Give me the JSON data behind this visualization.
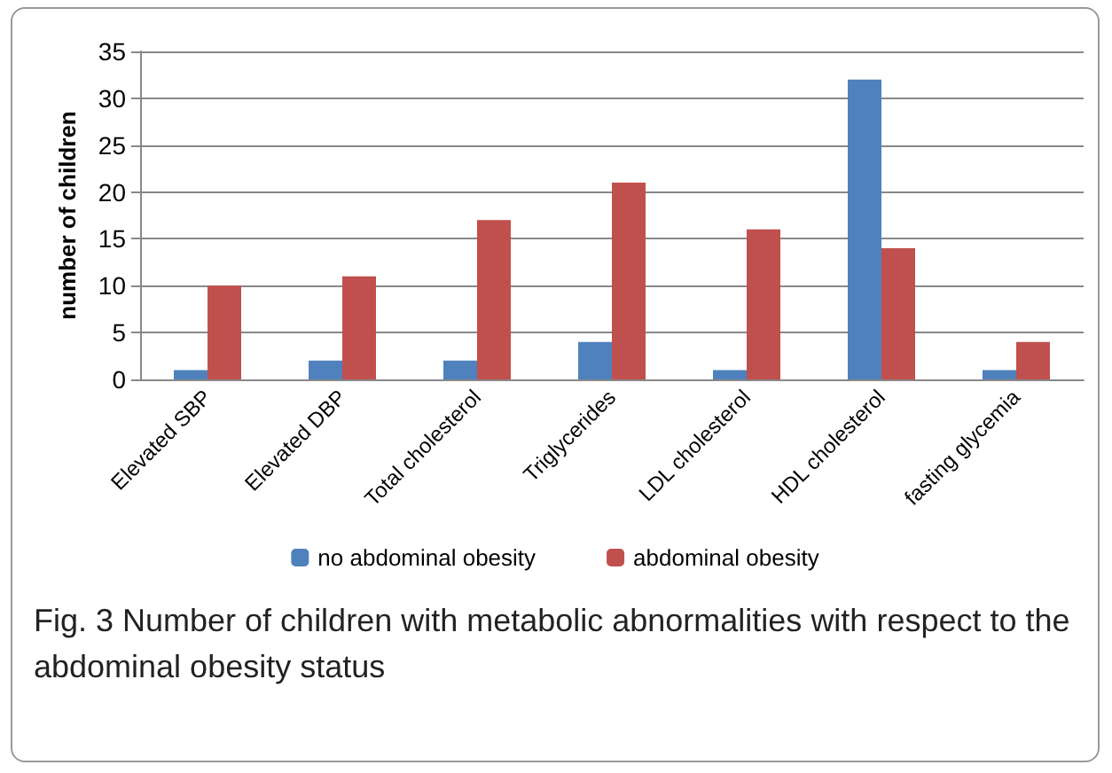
{
  "chart_data": {
    "type": "bar",
    "ylabel": "number of children",
    "categories": [
      "Elevated SBP",
      "Elevated DBP",
      "Total cholesterol",
      "Triglycerides",
      "LDL cholesterol",
      "HDL cholesterol",
      "fasting glycemia"
    ],
    "series": [
      {
        "name": "no abdominal obesity",
        "color": "#4f81bd",
        "values": [
          1,
          2,
          2,
          4,
          1,
          32,
          1
        ]
      },
      {
        "name": "abdominal obesity",
        "color": "#c0504d",
        "values": [
          10,
          11,
          17,
          21,
          16,
          14,
          4
        ]
      }
    ],
    "ylim": [
      0,
      35
    ],
    "yticks": [
      0,
      5,
      10,
      15,
      20,
      25,
      30,
      35
    ],
    "grid": "y",
    "legend": "bottom",
    "annotations": [
      "Fig. 3 Number of children with metabolic abnormalities with respect to the abdominal obesity status"
    ]
  }
}
